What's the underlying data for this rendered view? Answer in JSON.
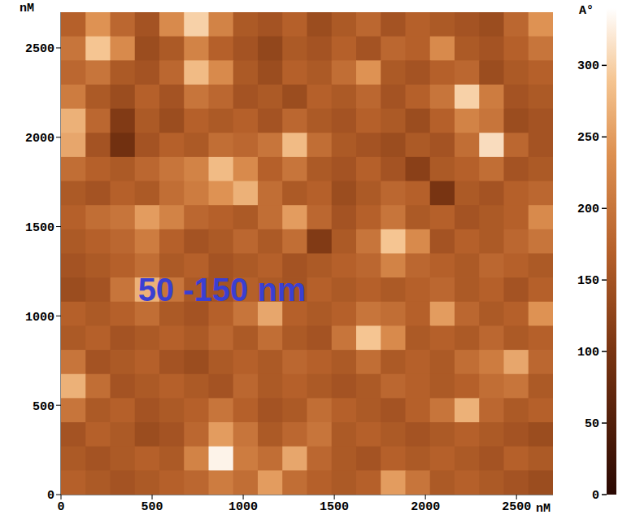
{
  "chart_data": {
    "type": "heatmap",
    "x_label": "nM",
    "y_label": "nM",
    "xlim": [
      0,
      2700
    ],
    "xticks": [
      0,
      500,
      1000,
      1500,
      2000,
      2500
    ],
    "ylim": [
      0,
      2700
    ],
    "yticks": [
      0,
      500,
      1000,
      1500,
      2000,
      2500
    ],
    "x": [
      67.5,
      202.5,
      337.5,
      472.5,
      607.5,
      742.5,
      877.5,
      1012.5,
      1147.5,
      1282.5,
      1417.5,
      1552.5,
      1687.5,
      1822.5,
      1957.5,
      2092.5,
      2227.5,
      2362.5,
      2497.5,
      2632.5
    ],
    "y": [
      2632.5,
      2497.5,
      2362.5,
      2227.5,
      2092.5,
      1957.5,
      1822.5,
      1687.5,
      1552.5,
      1417.5,
      1282.5,
      1147.5,
      1012.5,
      877.5,
      742.5,
      607.5,
      472.5,
      337.5,
      202.5,
      67.5
    ],
    "cells": [
      [
        170,
        240,
        180,
        150,
        230,
        300,
        220,
        160,
        150,
        170,
        140,
        160,
        180,
        150,
        170,
        160,
        150,
        140,
        180,
        240
      ],
      [
        200,
        290,
        230,
        140,
        160,
        220,
        170,
        150,
        130,
        160,
        150,
        170,
        150,
        180,
        170,
        230,
        160,
        150,
        170,
        200
      ],
      [
        180,
        200,
        160,
        150,
        180,
        280,
        230,
        160,
        140,
        170,
        160,
        190,
        240,
        160,
        150,
        170,
        180,
        140,
        160,
        170
      ],
      [
        210,
        160,
        140,
        170,
        150,
        200,
        180,
        150,
        160,
        140,
        170,
        160,
        180,
        150,
        170,
        200,
        300,
        210,
        150,
        160
      ],
      [
        270,
        180,
        110,
        160,
        140,
        170,
        160,
        170,
        150,
        180,
        160,
        150,
        170,
        160,
        140,
        170,
        220,
        200,
        140,
        150
      ],
      [
        260,
        150,
        90,
        150,
        170,
        160,
        190,
        180,
        200,
        280,
        190,
        160,
        150,
        140,
        160,
        150,
        190,
        310,
        180,
        150
      ],
      [
        190,
        170,
        160,
        180,
        200,
        220,
        280,
        230,
        170,
        200,
        160,
        150,
        170,
        150,
        120,
        160,
        170,
        190,
        150,
        160
      ],
      [
        160,
        150,
        170,
        160,
        190,
        210,
        240,
        270,
        190,
        160,
        170,
        140,
        160,
        180,
        170,
        100,
        160,
        150,
        170,
        180
      ],
      [
        170,
        190,
        200,
        250,
        220,
        180,
        170,
        160,
        190,
        250,
        180,
        150,
        170,
        200,
        160,
        170,
        150,
        160,
        170,
        230
      ],
      [
        160,
        170,
        180,
        210,
        170,
        150,
        160,
        180,
        160,
        190,
        110,
        160,
        200,
        290,
        230,
        150,
        170,
        160,
        180,
        200
      ],
      [
        150,
        160,
        170,
        190,
        160,
        170,
        150,
        160,
        170,
        150,
        160,
        170,
        180,
        220,
        180,
        170,
        160,
        180,
        170,
        160
      ],
      [
        140,
        150,
        200,
        270,
        200,
        160,
        150,
        170,
        160,
        150,
        170,
        160,
        170,
        160,
        170,
        180,
        160,
        170,
        150,
        170
      ],
      [
        170,
        160,
        170,
        190,
        160,
        150,
        170,
        200,
        260,
        170,
        160,
        170,
        200,
        190,
        170,
        250,
        180,
        160,
        170,
        240
      ],
      [
        160,
        170,
        150,
        160,
        170,
        160,
        180,
        160,
        190,
        160,
        150,
        200,
        290,
        230,
        160,
        170,
        160,
        180,
        160,
        170
      ],
      [
        200,
        150,
        160,
        170,
        150,
        140,
        160,
        170,
        160,
        180,
        170,
        160,
        190,
        160,
        170,
        160,
        190,
        210,
        260,
        180
      ],
      [
        270,
        190,
        150,
        160,
        170,
        160,
        150,
        180,
        160,
        170,
        160,
        150,
        160,
        180,
        170,
        160,
        170,
        190,
        200,
        160
      ],
      [
        200,
        160,
        170,
        150,
        160,
        170,
        200,
        170,
        150,
        160,
        190,
        170,
        160,
        150,
        170,
        200,
        270,
        180,
        160,
        170
      ],
      [
        150,
        170,
        160,
        140,
        150,
        180,
        250,
        200,
        160,
        180,
        200,
        160,
        170,
        160,
        150,
        160,
        170,
        160,
        150,
        140
      ],
      [
        160,
        150,
        160,
        170,
        160,
        220,
        330,
        210,
        190,
        260,
        180,
        160,
        150,
        170,
        160,
        170,
        160,
        150,
        170,
        160
      ],
      [
        170,
        160,
        150,
        160,
        170,
        180,
        210,
        190,
        250,
        190,
        170,
        160,
        170,
        250,
        200,
        160,
        170,
        160,
        150,
        140
      ]
    ],
    "colorbar": {
      "label": "A°",
      "range": [
        0,
        340
      ],
      "ticks": [
        0,
        50,
        100,
        150,
        200,
        250,
        300
      ]
    },
    "annotations": [
      {
        "text": "50 -150 nm",
        "x": 400,
        "y": 1150,
        "color": "#3a3fd2"
      }
    ]
  }
}
